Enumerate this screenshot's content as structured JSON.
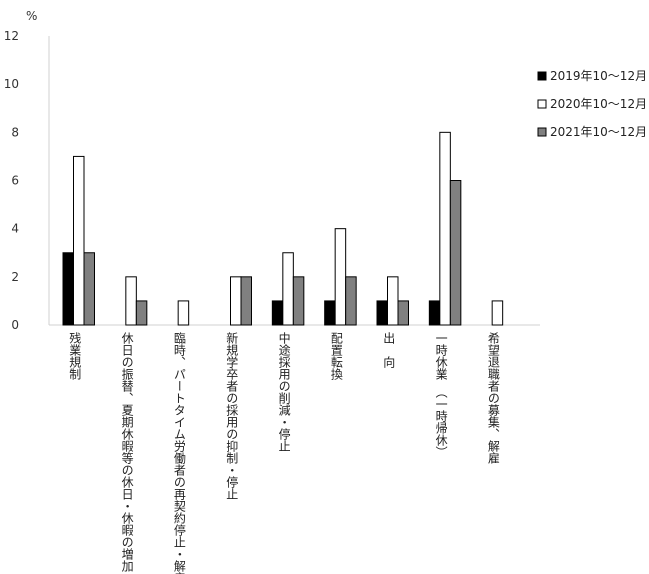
{
  "chart_data": {
    "type": "bar",
    "unit_label": "%",
    "ylim": [
      0,
      12
    ],
    "yticks": [
      0,
      2,
      4,
      6,
      8,
      10,
      12
    ],
    "grid": false,
    "legend_position": "right",
    "categories": [
      "残業規制",
      "休日の振替、夏期休暇等の休日・休暇の増加",
      "臨時、パートタイム労働者の再契約停止・解雇",
      "新規学卒者の採用の抑制・停止",
      "中途採用の削減・停止",
      "配置転換",
      "出　向",
      "一時休業　（一時帰休）",
      "希望退職者の募集、解雇"
    ],
    "series": [
      {
        "name": "2019年10～12月",
        "color": "#000000",
        "values": [
          3,
          0,
          0,
          0,
          1,
          1,
          1,
          1,
          0
        ]
      },
      {
        "name": "2020年10～12月",
        "color": "#ffffff",
        "values": [
          7,
          2,
          1,
          2,
          3,
          4,
          2,
          8,
          1
        ]
      },
      {
        "name": "2021年10～12月",
        "color": "#808080",
        "values": [
          3,
          1,
          0,
          2,
          2,
          2,
          1,
          6,
          0
        ]
      }
    ]
  }
}
